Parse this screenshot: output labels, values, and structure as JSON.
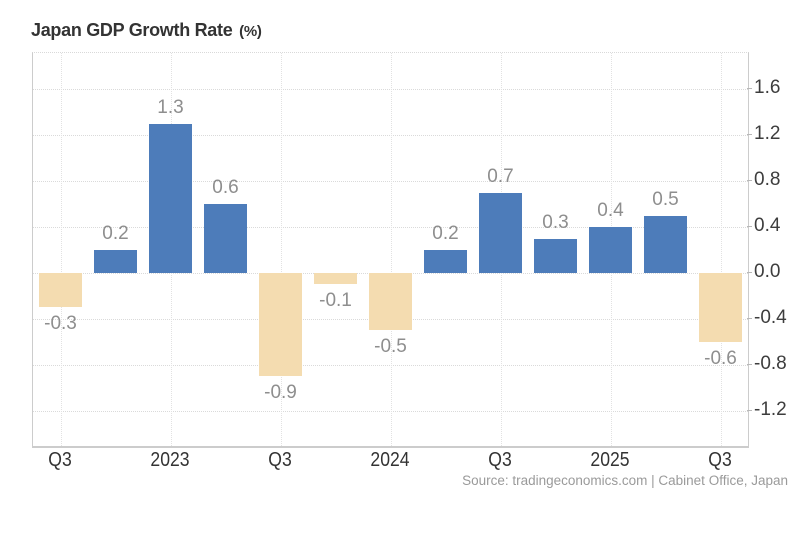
{
  "title": {
    "text": "Japan GDP Growth Rate",
    "unit": "(%)"
  },
  "source": "Source: tradingeconomics.com | Cabinet Office, Japan",
  "colors": {
    "positive_bar": "#4d7cba",
    "negative_bar": "#f4dcb0",
    "grid_line": "#dadada",
    "axis_line": "#cccccc",
    "value_label": "#8e8e8e",
    "axis_label": "#3d3d3d",
    "title_text": "#333333",
    "source_text": "#9a9a9a"
  },
  "chart_data": {
    "type": "bar",
    "title": "Japan GDP Growth Rate (%)",
    "values": [
      -0.3,
      0.2,
      1.3,
      0.6,
      -0.9,
      -0.1,
      -0.5,
      0.2,
      0.7,
      0.3,
      0.4,
      0.5,
      -0.6
    ],
    "bar_value_labels": [
      "-0.3",
      "0.2",
      "1.3",
      "0.6",
      "-0.9",
      "-0.1",
      "-0.5",
      "0.2",
      "0.7",
      "0.3",
      "0.4",
      "0.5",
      "-0.6"
    ],
    "x_tick_labels": [
      "Q3",
      "2023",
      "Q3",
      "2024",
      "Q3",
      "2025",
      "Q3"
    ],
    "x_tick_bar_indices": [
      0,
      2,
      4,
      6,
      8,
      10,
      12
    ],
    "y_ticks": [
      1.6,
      1.2,
      0.8,
      0.4,
      0.0,
      -0.4,
      -0.8,
      -1.2
    ],
    "y_tick_labels": [
      "1.6",
      "1.2",
      "0.8",
      "0.4",
      "0.0",
      "-0.4",
      "-0.8",
      "-1.2"
    ],
    "ylim": [
      -1.51,
      1.92
    ],
    "xlabel": "",
    "ylabel": "",
    "grid": "dotted",
    "legend": "none",
    "y_axis_side": "right"
  }
}
